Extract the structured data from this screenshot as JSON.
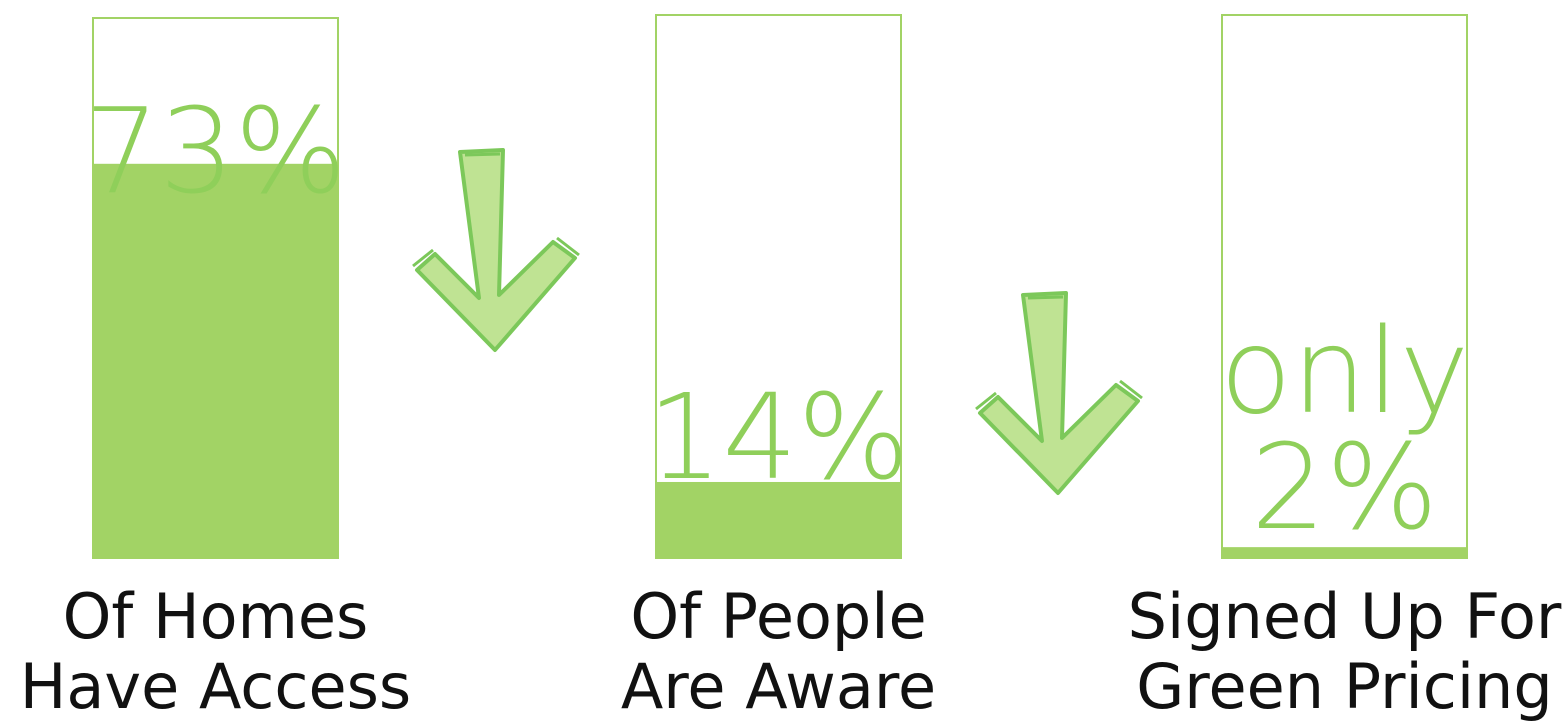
{
  "chart_data": {
    "type": "bar",
    "categories": [
      [
        "Of Homes",
        "Have Access"
      ],
      [
        "Of People",
        "Are Aware"
      ],
      [
        "Signed Up For",
        "Green Pricing"
      ]
    ],
    "values": [
      73,
      14,
      2
    ],
    "value_labels": [
      [
        "73%"
      ],
      [
        "14%"
      ],
      [
        "only",
        "2%"
      ]
    ],
    "ylim": [
      0,
      100
    ],
    "grid": false,
    "legend": "none",
    "arrows_between_bars": true
  },
  "colors": {
    "bar_fill": "#a2d365",
    "bar_outline": "#a2d365",
    "label_text": "#8fcf5a",
    "category_text": "#111111",
    "arrow_fill": "#bfe393",
    "arrow_stroke": "#7cc85a"
  },
  "icons": [
    "arrow-down-icon",
    "arrow-down-icon"
  ]
}
